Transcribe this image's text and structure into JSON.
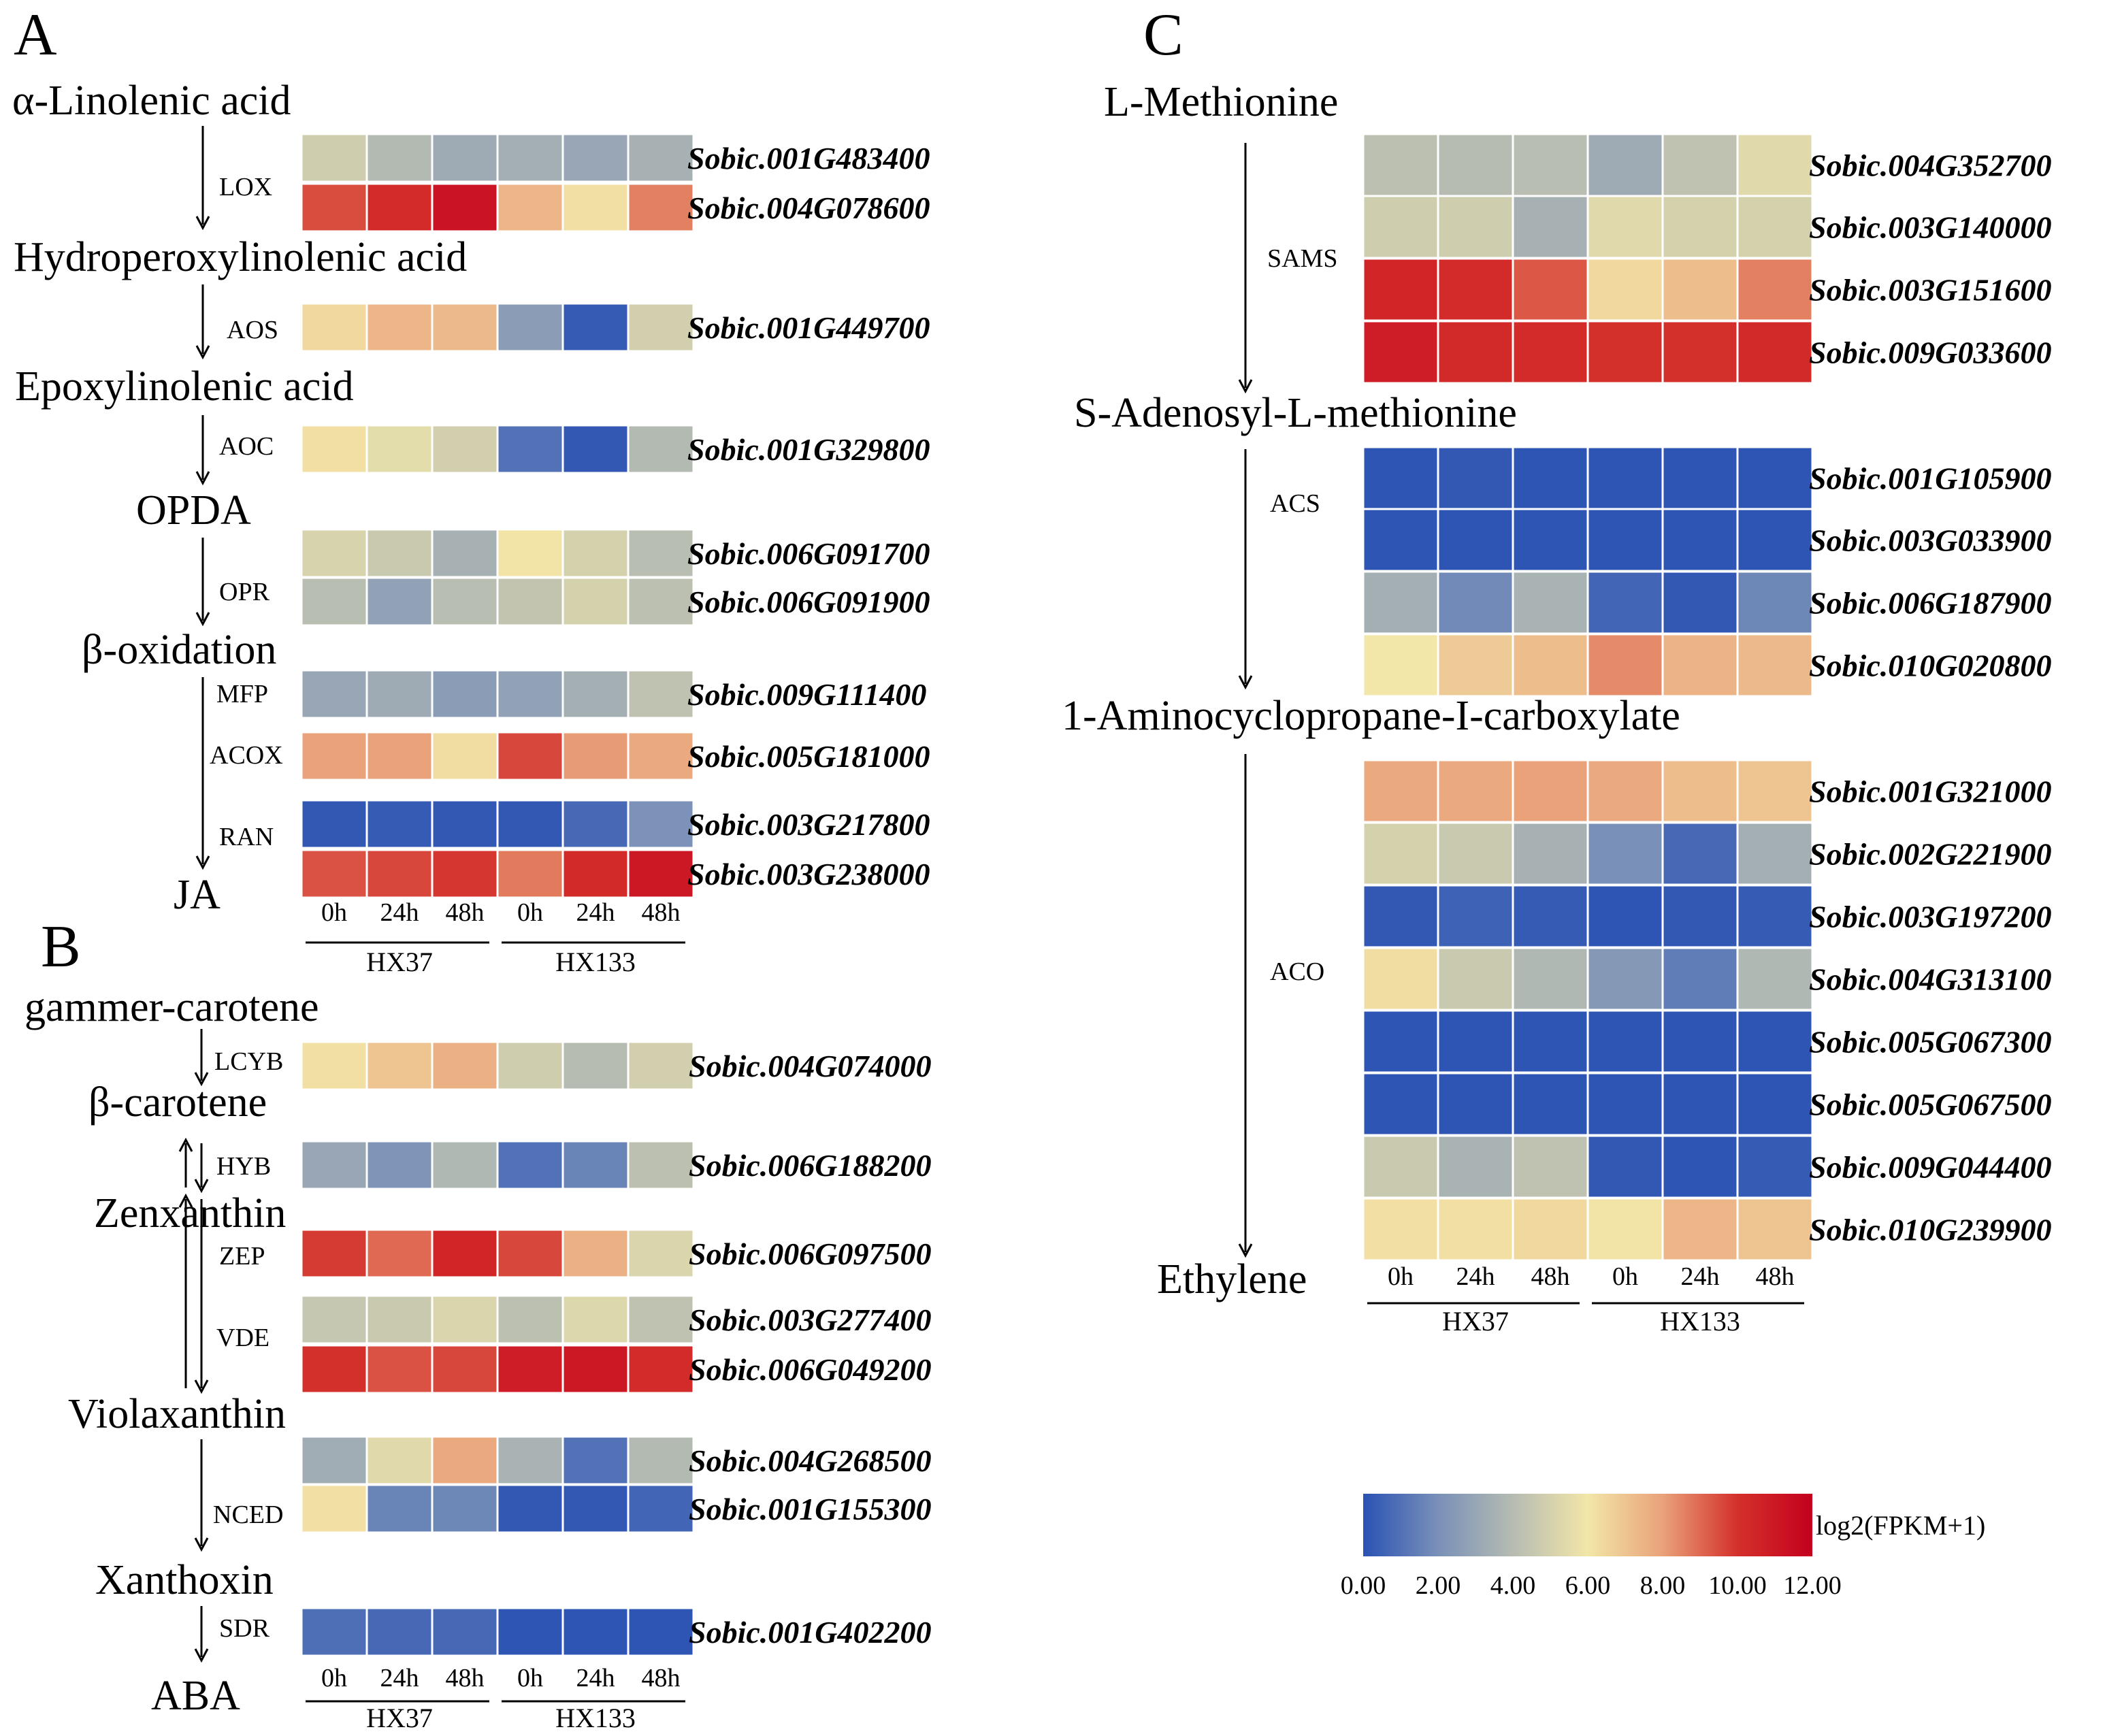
{
  "chart_data": {
    "type": "heatmap",
    "value_label": "log2(FPKM+1)",
    "time_points": [
      "0h",
      "24h",
      "48h",
      "0h",
      "24h",
      "48h"
    ],
    "groups": [
      "HX37",
      "HX133"
    ],
    "color_scale": {
      "min": 0,
      "max": 12,
      "stops": [
        {
          "v": 0,
          "c": "#2a52b4"
        },
        {
          "v": 2,
          "c": "#7990b8"
        },
        {
          "v": 4,
          "c": "#b6bcb2"
        },
        {
          "v": 6,
          "c": "#f2e6a8"
        },
        {
          "v": 8,
          "c": "#e9a27a"
        },
        {
          "v": 10,
          "c": "#d4302b"
        },
        {
          "v": 12,
          "c": "#c4001e"
        }
      ],
      "ticks": [
        "0.00",
        "2.00",
        "4.00",
        "6.00",
        "8.00",
        "10.00",
        "12.00"
      ]
    },
    "panels": [
      {
        "label": "A",
        "metabolites": [
          "α-Linolenic acid",
          "Hydroperoxylinolenic acid",
          "Epoxylinolenic acid",
          "OPDA",
          "β-oxidation",
          "JA"
        ],
        "enzymes": [
          "LOX",
          "AOS",
          "AOC",
          "OPR",
          "MFP",
          "ACOX",
          "RAN"
        ],
        "rows": [
          {
            "gene": "Sobic.001G483400",
            "values": [
              4.8,
              3.9,
              3.2,
              3.4,
              3.0,
              3.5
            ]
          },
          {
            "gene": "Sobic.004G078600",
            "values": [
              9.5,
              10.2,
              11.2,
              7.4,
              6.2,
              8.6
            ]
          },
          {
            "gene": "Sobic.001G449700",
            "values": [
              6.4,
              7.4,
              7.3,
              2.6,
              0.3,
              4.9
            ]
          },
          {
            "gene": "Sobic.001G329800",
            "values": [
              6.2,
              5.5,
              4.9,
              1.0,
              0.2,
              3.9
            ]
          },
          {
            "gene": "Sobic.006G091700",
            "values": [
              5.1,
              4.6,
              3.5,
              6.1,
              5.0,
              4.1
            ]
          },
          {
            "gene": "Sobic.006G091900",
            "values": [
              4.1,
              2.8,
              4.1,
              4.4,
              5.0,
              4.2
            ]
          },
          {
            "gene": "Sobic.009G111400",
            "values": [
              3.0,
              3.2,
              2.6,
              2.8,
              3.4,
              4.3
            ]
          },
          {
            "gene": "Sobic.005G181000",
            "values": [
              8.0,
              8.0,
              6.3,
              9.6,
              8.1,
              7.8
            ]
          },
          {
            "gene": "Sobic.003G217800",
            "values": [
              0.2,
              0.3,
              0.2,
              0.2,
              0.7,
              2.1
            ]
          },
          {
            "gene": "Sobic.003G238000",
            "values": [
              9.4,
              9.6,
              9.9,
              8.7,
              10.3,
              11.0
            ]
          }
        ]
      },
      {
        "label": "B",
        "metabolites": [
          "gammer-carotene",
          "β-carotene",
          "Zenxanthin",
          "Violaxanthin",
          "Xanthoxin",
          "ABA"
        ],
        "enzymes": [
          "LCYB",
          "HYB",
          "ZEP",
          "VDE",
          "NCED",
          "SDR"
        ],
        "rows": [
          {
            "gene": "Sobic.004G074000",
            "values": [
              6.2,
              7.0,
              7.6,
              4.8,
              4.0,
              4.9
            ]
          },
          {
            "gene": "Sobic.006G188200",
            "values": [
              3.0,
              2.2,
              3.8,
              1.0,
              1.6,
              4.2
            ]
          },
          {
            "gene": "Sobic.006G097500",
            "values": [
              9.8,
              9.0,
              10.4,
              9.6,
              7.6,
              5.2
            ]
          },
          {
            "gene": "Sobic.003G277400",
            "values": [
              4.5,
              4.6,
              5.2,
              4.2,
              5.3,
              4.3
            ]
          },
          {
            "gene": "Sobic.006G049200",
            "values": [
              10.0,
              9.4,
              9.6,
              10.8,
              11.0,
              10.2
            ]
          },
          {
            "gene": "Sobic.004G268500",
            "values": [
              3.3,
              5.4,
              7.8,
              3.6,
              1.0,
              3.9
            ]
          },
          {
            "gene": "Sobic.001G155300",
            "values": [
              6.2,
              1.6,
              1.7,
              0.2,
              0.2,
              0.6
            ]
          },
          {
            "gene": "Sobic.001G402200",
            "values": [
              0.9,
              0.7,
              0.7,
              0.1,
              0.1,
              0.1
            ]
          }
        ]
      },
      {
        "label": "C",
        "metabolites": [
          "L-Methionine",
          "S-Adenosyl-L-methionine",
          "1-Aminocyclopropane-I-carboxylate",
          "Ethylene"
        ],
        "enzymes": [
          "SAMS",
          "ACS",
          "ACO"
        ],
        "rows": [
          {
            "gene": "Sobic.004G352700",
            "values": [
              4.2,
              4.0,
              4.1,
              3.2,
              4.3,
              5.4
            ]
          },
          {
            "gene": "Sobic.003G140000",
            "values": [
              4.8,
              4.8,
              3.5,
              5.4,
              5.0,
              5.0
            ]
          },
          {
            "gene": "Sobic.003G151600",
            "values": [
              10.4,
              10.2,
              9.3,
              6.4,
              7.2,
              8.6
            ]
          },
          {
            "gene": "Sobic.009G033600",
            "values": [
              10.8,
              10.3,
              10.2,
              10.0,
              10.0,
              10.3
            ]
          },
          {
            "gene": "Sobic.001G105900",
            "values": [
              0.1,
              0.2,
              0.1,
              0.1,
              0.1,
              0.1
            ]
          },
          {
            "gene": "Sobic.003G033900",
            "values": [
              0.1,
              0.1,
              0.1,
              0.1,
              0.1,
              0.1
            ]
          },
          {
            "gene": "Sobic.006G187900",
            "values": [
              3.4,
              1.8,
              3.6,
              0.6,
              0.2,
              1.7
            ]
          },
          {
            "gene": "Sobic.010G020800",
            "values": [
              6.0,
              6.8,
              7.2,
              8.4,
              7.5,
              7.3
            ]
          },
          {
            "gene": "Sobic.001G321000",
            "values": [
              7.8,
              7.8,
              8.0,
              7.8,
              7.2,
              7.0
            ]
          },
          {
            "gene": "Sobic.002G221900",
            "values": [
              5.0,
              4.6,
              3.5,
              2.0,
              0.7,
              3.4
            ]
          },
          {
            "gene": "Sobic.003G197200",
            "values": [
              0.2,
              0.5,
              0.3,
              0.1,
              0.2,
              0.3
            ]
          },
          {
            "gene": "Sobic.004G313100",
            "values": [
              6.3,
              4.6,
              3.8,
              2.4,
              1.4,
              3.8
            ]
          },
          {
            "gene": "Sobic.005G067300",
            "values": [
              0.1,
              0.1,
              0.1,
              0.1,
              0.1,
              0.1
            ]
          },
          {
            "gene": "Sobic.005G067500",
            "values": [
              0.1,
              0.1,
              0.1,
              0.1,
              0.1,
              0.1
            ]
          },
          {
            "gene": "Sobic.009G044400",
            "values": [
              4.6,
              3.6,
              4.3,
              0.2,
              0.1,
              0.3
            ]
          },
          {
            "gene": "Sobic.010G239900",
            "values": [
              6.2,
              6.2,
              6.4,
              6.1,
              7.4,
              7.0
            ]
          }
        ]
      }
    ]
  }
}
